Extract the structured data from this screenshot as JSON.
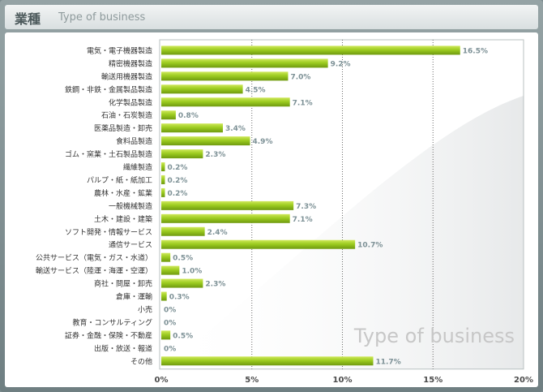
{
  "header": {
    "title": "業種",
    "subtitle": "Type of business"
  },
  "watermark": "Type of business",
  "chart_data": {
    "type": "bar",
    "orientation": "horizontal",
    "title": "業種",
    "xlim": [
      0,
      20
    ],
    "xticks": [
      "0%",
      "5%",
      "10%",
      "15%",
      "20%"
    ],
    "grid": "vertical dotted",
    "bar_color": "#8ec21f",
    "categories": [
      "電気・電子機器製造",
      "精密機器製造",
      "輸送用機器製造",
      "鉄鋼・非鉄・金属製品製造",
      "化学製品製造",
      "石油・石炭製造",
      "医薬品製造・卸売",
      "食料品製造",
      "ゴム・窯業・土石製品製造",
      "繊維製造",
      "パルプ・紙・紙加工",
      "農林・水産・鉱業",
      "一般機械製造",
      "土木・建設・建築",
      "ソフト開発・情報サービス",
      "通信サービス",
      "公共サービス（電気・ガス・水道）",
      "輸送サービス（陸運・海運・空運）",
      "商社・問屋・卸売",
      "倉庫・運輸",
      "小売",
      "教育・コンサルティング",
      "証券・金融・保険・不動産",
      "出版・放送・報道",
      "その他"
    ],
    "values": [
      16.5,
      9.2,
      7.0,
      4.5,
      7.1,
      0.8,
      3.4,
      4.9,
      2.3,
      0.2,
      0.2,
      0.2,
      7.3,
      7.1,
      2.4,
      10.7,
      0.5,
      1.0,
      2.3,
      0.3,
      0,
      0,
      0.5,
      0,
      11.7
    ],
    "value_labels": [
      "16.5%",
      "9.2%",
      "7.0%",
      "4.5%",
      "7.1%",
      "0.8%",
      "3.4%",
      "4.9%",
      "2.3%",
      "0.2%",
      "0.2%",
      "0.2%",
      "7.3%",
      "7.1%",
      "2.4%",
      "10.7%",
      "0.5%",
      "1.0%",
      "2.3%",
      "0.3%",
      "0%",
      "0%",
      "0.5%",
      "0%",
      "11.7%"
    ]
  }
}
